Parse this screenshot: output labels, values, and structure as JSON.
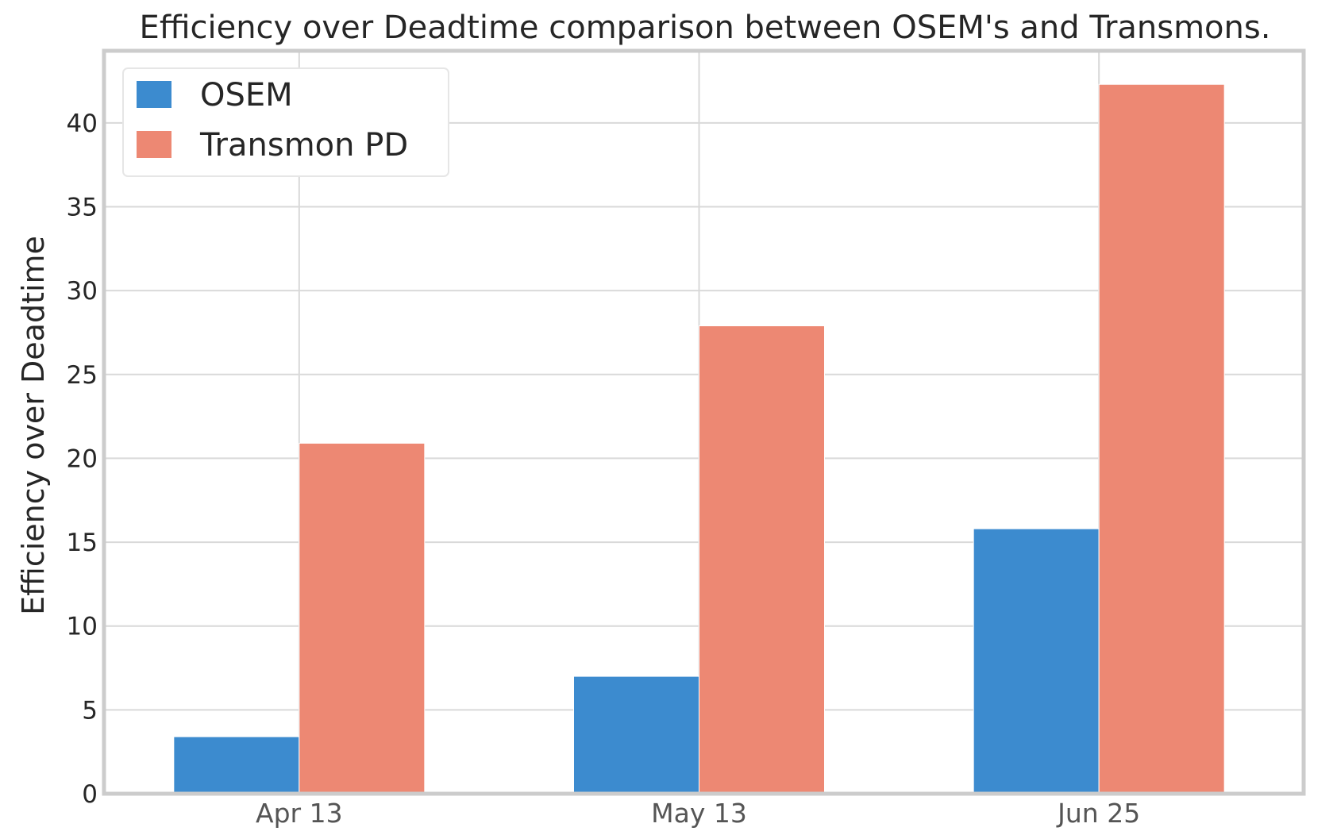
{
  "chart_data": {
    "type": "bar",
    "title": "Efficiency over Deadtime comparison between OSEM's and Transmons.",
    "xlabel": "",
    "ylabel": "Efficiency over Deadtime",
    "categories": [
      "Apr 13",
      "May 13",
      "Jun 25"
    ],
    "series": [
      {
        "name": "OSEM",
        "values": [
          3.4,
          7.0,
          15.8
        ],
        "color": "#3c8bcf"
      },
      {
        "name": "Transmon PD",
        "values": [
          20.9,
          27.9,
          42.3
        ],
        "color": "#ed8873"
      }
    ],
    "ylim": [
      0,
      44.3
    ],
    "yticks": [
      0,
      5,
      10,
      15,
      20,
      25,
      30,
      35,
      40
    ],
    "grid": true,
    "legend": "top-left"
  }
}
